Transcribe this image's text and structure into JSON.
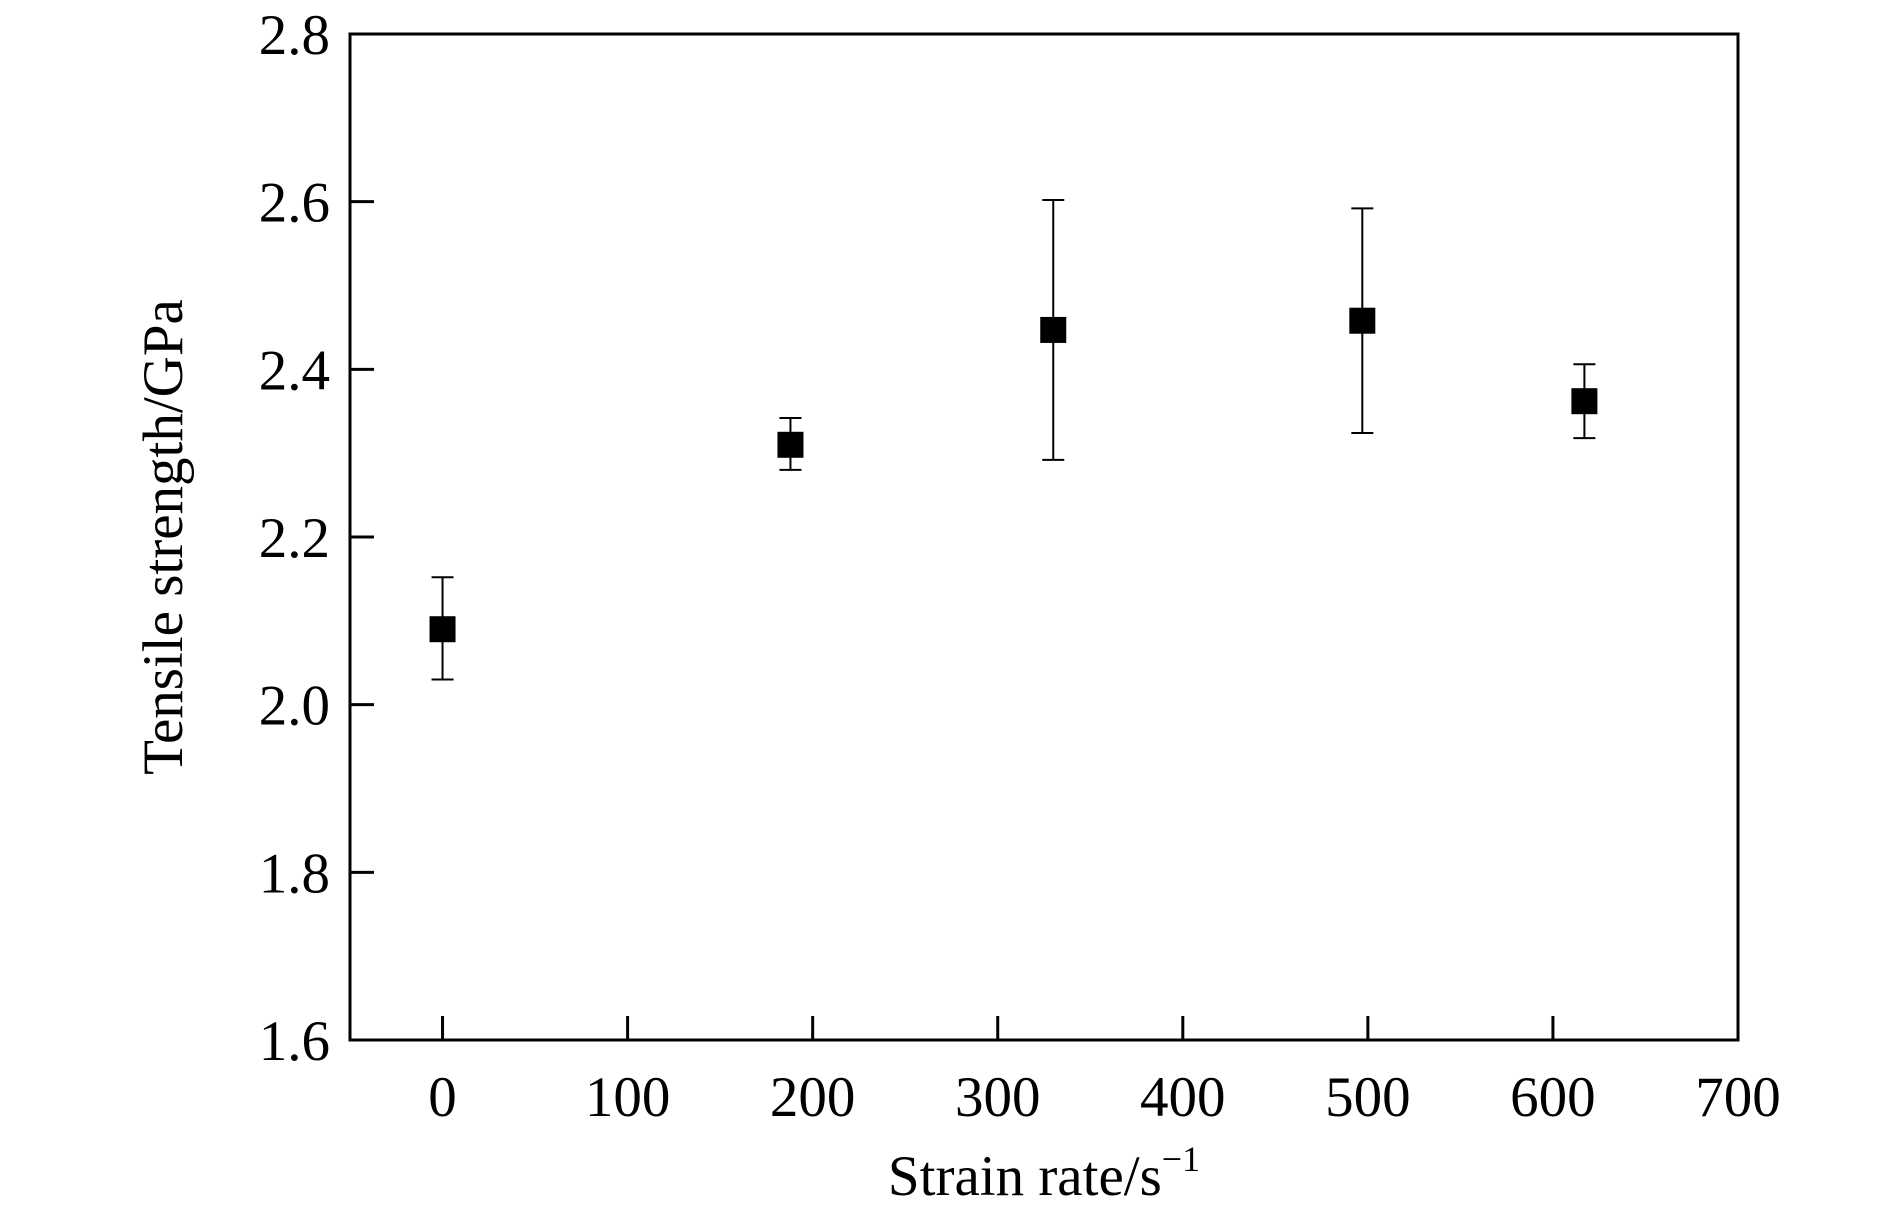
{
  "chart_data": {
    "type": "scatter",
    "xlabel": "Strain rate/s",
    "xlabel_superscript": "−1",
    "ylabel": "Tensile strength/GPa",
    "xlim": [
      -50,
      700
    ],
    "ylim": [
      1.6,
      2.8
    ],
    "xticks": [
      0,
      100,
      200,
      300,
      400,
      500,
      600,
      700
    ],
    "xtick_labels": [
      "0",
      "100",
      "200",
      "300",
      "400",
      "500",
      "600",
      "700"
    ],
    "yticks": [
      1.6,
      1.8,
      2.0,
      2.2,
      2.4,
      2.6,
      2.8
    ],
    "ytick_labels": [
      "1.6",
      "1.8",
      "2.0",
      "2.2",
      "2.4",
      "2.6",
      "2.8"
    ],
    "grid": false,
    "marker": "square",
    "marker_color": "#000000",
    "points": [
      {
        "x": 0,
        "y": 2.09,
        "err_low": 2.03,
        "err_high": 2.152
      },
      {
        "x": 188,
        "y": 2.31,
        "err_low": 2.28,
        "err_high": 2.342
      },
      {
        "x": 330,
        "y": 2.447,
        "err_low": 2.292,
        "err_high": 2.602
      },
      {
        "x": 497,
        "y": 2.458,
        "err_low": 2.324,
        "err_high": 2.592
      },
      {
        "x": 617,
        "y": 2.362,
        "err_low": 2.318,
        "err_high": 2.406
      }
    ]
  }
}
